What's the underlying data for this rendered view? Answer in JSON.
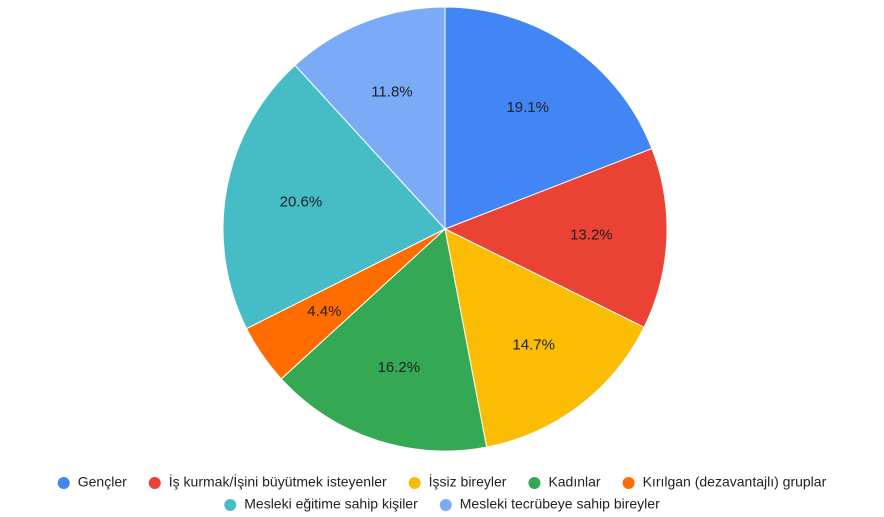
{
  "chart_data": {
    "type": "pie",
    "categories": [
      "Gençler",
      "İş kurmak/İşini büyütmek isteyenler",
      "İşsiz bireyler",
      "Kadınlar",
      "Kırılgan (dezavantajlı) gruplar",
      "Mesleki eğitime sahip kişiler",
      "Mesleki tecrübeye sahip bireyler"
    ],
    "values": [
      19.1,
      13.2,
      14.7,
      16.2,
      4.4,
      20.6,
      11.8
    ],
    "value_labels": [
      "19.1%",
      "13.2%",
      "14.7%",
      "16.2%",
      "4.4%",
      "20.6%",
      "11.8%"
    ],
    "colors": [
      "#4285f4",
      "#ea4335",
      "#fbbc04",
      "#34a853",
      "#ff6d01",
      "#46bdc6",
      "#7baaf7"
    ],
    "legend": "bottom"
  }
}
